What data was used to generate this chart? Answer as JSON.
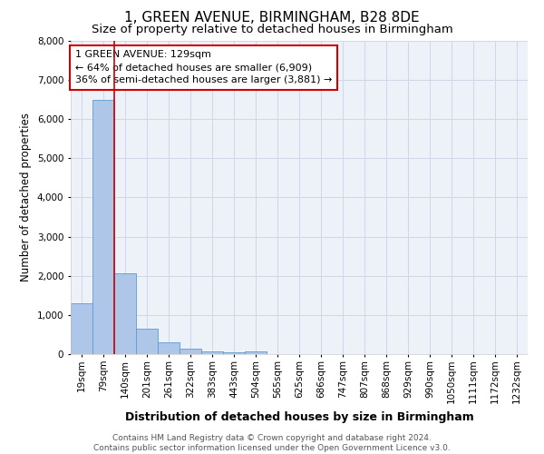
{
  "title": "1, GREEN AVENUE, BIRMINGHAM, B28 8DE",
  "subtitle": "Size of property relative to detached houses in Birmingham",
  "xlabel": "Distribution of detached houses by size in Birmingham",
  "ylabel": "Number of detached properties",
  "footer_line1": "Contains HM Land Registry data © Crown copyright and database right 2024.",
  "footer_line2": "Contains public sector information licensed under the Open Government Licence v3.0.",
  "bar_categories": [
    "19sqm",
    "79sqm",
    "140sqm",
    "201sqm",
    "261sqm",
    "322sqm",
    "383sqm",
    "443sqm",
    "504sqm",
    "565sqm",
    "625sqm",
    "686sqm",
    "747sqm",
    "807sqm",
    "868sqm",
    "929sqm",
    "990sqm",
    "1050sqm",
    "1111sqm",
    "1172sqm",
    "1232sqm"
  ],
  "bar_values": [
    1310,
    6500,
    2060,
    650,
    290,
    130,
    80,
    55,
    75,
    0,
    0,
    0,
    0,
    0,
    0,
    0,
    0,
    0,
    0,
    0,
    0
  ],
  "bar_color": "#aec6e8",
  "bar_edge_color": "#5b9bd5",
  "property_line_label": "1 GREEN AVENUE: 129sqm",
  "annotation_line1": "← 64% of detached houses are smaller (6,909)",
  "annotation_line2": "36% of semi-detached houses are larger (3,881) →",
  "annotation_box_color": "#ffffff",
  "annotation_box_edge_color": "#cc0000",
  "vline_color": "#cc0000",
  "ylim": [
    0,
    8000
  ],
  "yticks": [
    0,
    1000,
    2000,
    3000,
    4000,
    5000,
    6000,
    7000,
    8000
  ],
  "grid_color": "#d0d8e8",
  "plot_bg_color": "#edf2f9",
  "title_fontsize": 11,
  "subtitle_fontsize": 9.5,
  "axis_label_fontsize": 8.5,
  "tick_fontsize": 7.5,
  "annotation_fontsize": 8,
  "footer_fontsize": 6.5
}
